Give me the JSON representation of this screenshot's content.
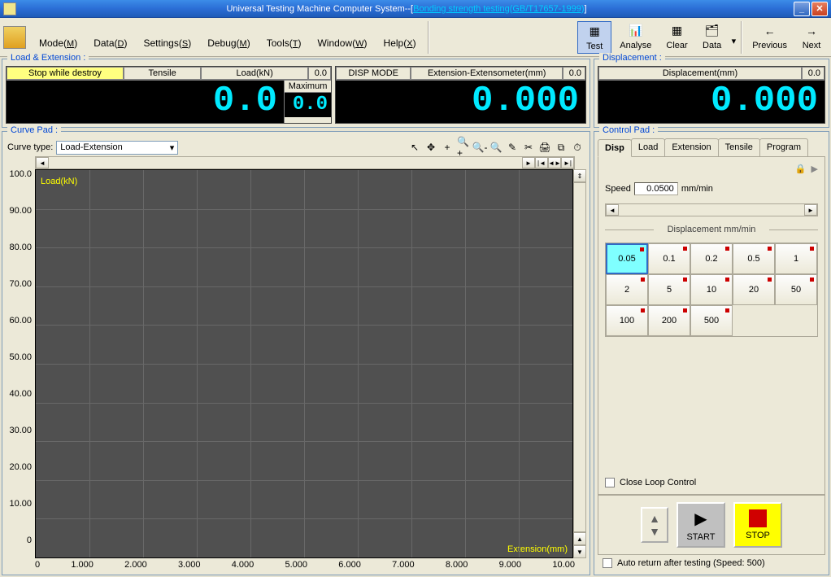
{
  "titlebar": {
    "prefix": "Universal Testing Machine Computer System--[",
    "link": "Bonding strength testing(GB/T17657-1999)",
    "suffix": "]"
  },
  "menus": [
    "Mode(M)",
    "Data(D)",
    "Settings(S)",
    "Debug(M)",
    "Tools(T)",
    "Window(W)",
    "Help(X)"
  ],
  "toolbar": [
    {
      "label": "Test",
      "active": true,
      "glyph": "▦"
    },
    {
      "label": "Analyse",
      "glyph": "📊"
    },
    {
      "label": "Clear",
      "glyph": "▦"
    },
    {
      "label": "Data",
      "glyph": "🗂"
    },
    {
      "label": "Previous",
      "glyph": "←"
    },
    {
      "label": "Next",
      "glyph": "→"
    }
  ],
  "load_ext": {
    "title": "Load & Extension :",
    "cells": {
      "stop": "Stop while destroy",
      "tensile": "Tensile",
      "load_label": "Load(kN)",
      "load_small": "0.0",
      "load_big": "0.0",
      "max_label": "Maximum",
      "max_val": "0.0",
      "disp_mode": "DISP MODE",
      "ext_label": "Extension-Extensometer(mm)",
      "ext_small": "0.0",
      "ext_big": "0.000"
    }
  },
  "displacement": {
    "title": "Displacement :",
    "label": "Displacement(mm)",
    "small": "0.0",
    "big": "0.000"
  },
  "curve": {
    "title": "Curve Pad :",
    "type_label": "Curve type:",
    "type_value": "Load-Extension",
    "y_label": "Load(kN)",
    "x_label": "Extension(mm)",
    "y_ticks": [
      "100.0",
      "90.00",
      "80.00",
      "70.00",
      "60.00",
      "50.00",
      "40.00",
      "30.00",
      "20.00",
      "10.00",
      "0"
    ],
    "x_ticks": [
      "0",
      "1.000",
      "2.000",
      "3.000",
      "4.000",
      "5.000",
      "6.000",
      "7.000",
      "8.000",
      "9.000",
      "10.00"
    ],
    "grid_count": 10,
    "tools": [
      "↖",
      "✥",
      "+",
      "🔍+",
      "🔍-",
      "🔍",
      "✎",
      "✂",
      "🖨",
      "⧉",
      "⏱"
    ],
    "plot_bg": "#505050",
    "grid_color": "#686868",
    "axis_label_color": "#ffff00"
  },
  "control": {
    "title": "Control Pad :",
    "tabs": [
      "Disp",
      "Load",
      "Extension",
      "Tensile",
      "Program"
    ],
    "active_tab": 0,
    "speed_label": "Speed",
    "speed_value": "0.0500",
    "speed_unit": "mm/min",
    "grid_title": "Displacement mm/min",
    "speeds": [
      "0.05",
      "0.1",
      "0.2",
      "0.5",
      "1",
      "2",
      "5",
      "10",
      "20",
      "50",
      "100",
      "200",
      "500"
    ],
    "selected_speed": 0,
    "close_loop": "Close Loop Control",
    "start": "START",
    "stop": "STOP",
    "auto_return": "Auto return after testing (Speed: 500)"
  },
  "colors": {
    "lcd_bg": "#000000",
    "lcd_fg": "#00eaff",
    "panel_bg": "#ece9d8",
    "highlight": "#ffff80",
    "stop_btn": "#ffff00",
    "speed_sel": "#7fffff"
  }
}
